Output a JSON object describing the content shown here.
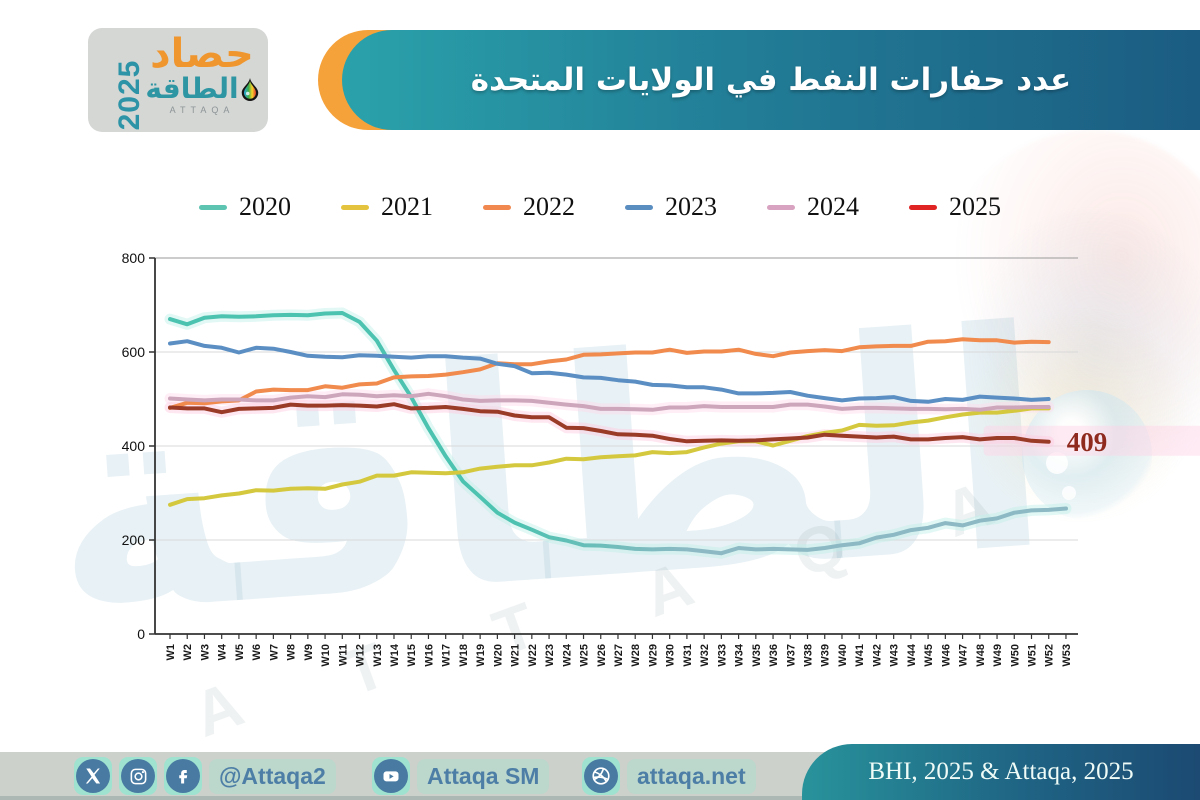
{
  "header": {
    "logo": {
      "year": "2025",
      "line1": "حصاد",
      "line2": "الطاقة",
      "sub": "ATTAQA"
    },
    "title": "عدد حفارات النفط في الولايات المتحدة"
  },
  "chart_data": {
    "type": "line",
    "title": "عدد حفارات النفط في الولايات المتحدة",
    "xlabel": "",
    "ylabel": "",
    "ylim": [
      0,
      800
    ],
    "yticks": [
      0,
      200,
      400,
      600,
      800
    ],
    "grid": "horizontal",
    "legend_position": "top",
    "categories": [
      "W1",
      "W2",
      "W3",
      "W4",
      "W5",
      "W6",
      "W7",
      "W8",
      "W9",
      "W10",
      "W11",
      "W12",
      "W13",
      "W14",
      "W15",
      "W16",
      "W17",
      "W18",
      "W19",
      "W20",
      "W21",
      "W22",
      "W23",
      "W24",
      "W25",
      "W26",
      "W27",
      "W28",
      "W29",
      "W30",
      "W31",
      "W32",
      "W33",
      "W34",
      "W35",
      "W36",
      "W37",
      "W38",
      "W39",
      "W40",
      "W41",
      "W42",
      "W43",
      "W44",
      "W45",
      "W46",
      "W47",
      "W48",
      "W49",
      "W50",
      "W51",
      "W52",
      "W53"
    ],
    "series": [
      {
        "name": "2020",
        "color": "#4cc2b0",
        "color_end": "#8cb9c4",
        "legend_color": "#5ec4b2",
        "halo": "#bfefe8",
        "values": [
          670,
          659,
          673,
          676,
          675,
          676,
          678,
          679,
          678,
          682,
          683,
          664,
          624,
          562,
          504,
          438,
          378,
          325,
          292,
          258,
          237,
          222,
          206,
          199,
          189,
          188,
          185,
          181,
          180,
          181,
          180,
          176,
          172,
          183,
          180,
          181,
          180,
          179,
          183,
          189,
          193,
          205,
          211,
          221,
          226,
          236,
          231,
          241,
          246,
          258,
          263,
          264,
          267
        ]
      },
      {
        "name": "2021",
        "color": "#d4c83e",
        "legend_color": "#e4c43e",
        "values": [
          275,
          287,
          289,
          295,
          299,
          306,
          305,
          309,
          310,
          309,
          318,
          324,
          337,
          337,
          344,
          343,
          342,
          344,
          352,
          356,
          359,
          359,
          365,
          373,
          372,
          376,
          378,
          380,
          387,
          385,
          387,
          397,
          405,
          410,
          410,
          401,
          411,
          421,
          428,
          433,
          445,
          443,
          444,
          450,
          454,
          461,
          467,
          471,
          471,
          475,
          480,
          480
        ]
      },
      {
        "name": "2022",
        "color": "#f08a4d",
        "legend_color": "#f0884f",
        "values": [
          481,
          492,
          491,
          495,
          497,
          516,
          520,
          519,
          519,
          527,
          524,
          531,
          533,
          546,
          548,
          549,
          552,
          557,
          563,
          576,
          574,
          574,
          580,
          584,
          594,
          595,
          597,
          599,
          599,
          605,
          598,
          601,
          601,
          605,
          596,
          591,
          599,
          602,
          604,
          602,
          610,
          612,
          613,
          613,
          622,
          623,
          627,
          625,
          625,
          620,
          622,
          621
        ]
      },
      {
        "name": "2023",
        "color": "#5b8fc3",
        "legend_color": "#5b8ec0",
        "values": [
          618,
          623,
          613,
          609,
          599,
          609,
          607,
          600,
          592,
          590,
          589,
          593,
          592,
          590,
          588,
          591,
          591,
          588,
          586,
          575,
          570,
          555,
          556,
          552,
          546,
          545,
          540,
          537,
          530,
          529,
          525,
          525,
          520,
          512,
          512,
          513,
          515,
          507,
          502,
          497,
          501,
          502,
          504,
          496,
          494,
          500,
          498,
          505,
          503,
          501,
          498,
          500
        ]
      },
      {
        "name": "2024",
        "color": "#cda6bc",
        "legend_color": "#d8a3c0",
        "halo": "#ffd9ec",
        "values": [
          501,
          499,
          497,
          499,
          499,
          497,
          497,
          503,
          506,
          504,
          510,
          509,
          506,
          508,
          506,
          511,
          506,
          499,
          496,
          497,
          497,
          496,
          492,
          488,
          485,
          479,
          479,
          478,
          477,
          482,
          482,
          485,
          483,
          483,
          483,
          483,
          488,
          488,
          484,
          479,
          481,
          481,
          480,
          479,
          479,
          478,
          479,
          477,
          482,
          482,
          483,
          483
        ]
      },
      {
        "name": "2025",
        "color": "#9a3b28",
        "legend_color": "#e02424",
        "halo": "#ffc9df",
        "values": [
          482,
          480,
          480,
          472,
          479,
          480,
          481,
          488,
          486,
          486,
          487,
          486,
          484,
          489,
          480,
          481,
          483,
          479,
          474,
          473,
          465,
          461,
          461,
          439,
          438,
          432,
          425,
          424,
          422,
          415,
          410,
          411,
          412,
          411,
          412,
          414,
          416,
          418,
          424,
          422,
          420,
          418,
          420,
          414,
          414,
          417,
          419,
          414,
          417,
          417,
          411,
          409
        ]
      }
    ],
    "annotation": {
      "text": "409",
      "color": "#8e2a1e",
      "band_color": "#ffd2e6"
    }
  },
  "watermark": {
    "word": "الطاقة",
    "letters": [
      "A",
      "T",
      "T",
      "A",
      "Q",
      "A"
    ]
  },
  "footer": {
    "handle": "@Attaqa2",
    "youtube_label": "Attaqa SM",
    "website": "attaqa.net",
    "source": "BHI, 2025 & Attaqa, 2025"
  },
  "colors": {
    "banner_teal_start": "#2aa2ab",
    "banner_teal_end": "#1b5c82",
    "banner_orange": "#f6a23b",
    "footer_gray": "#ccd1cb",
    "social_blue": "#487aa2",
    "mint": "#9fe2cf",
    "axis": "#333333",
    "gridline_light": "#d9d9d9",
    "gridline_top": "#9a9a9a"
  }
}
